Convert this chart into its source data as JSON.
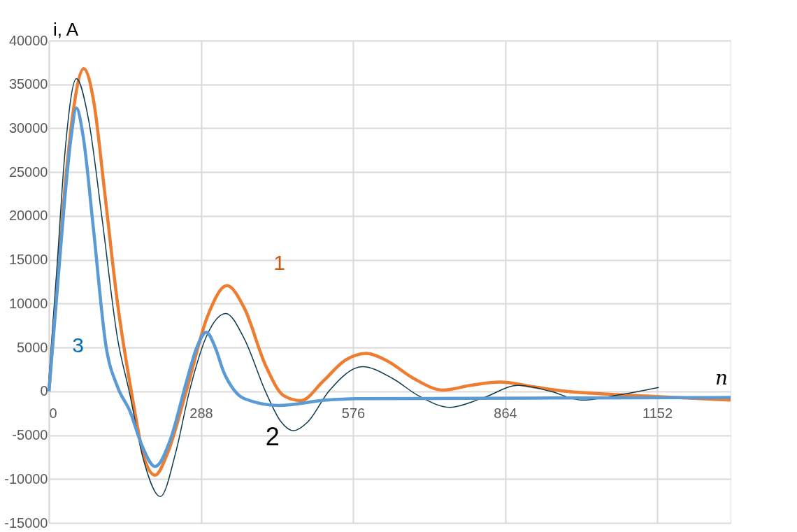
{
  "chart_data": {
    "type": "line",
    "xlabel": "n",
    "ylabel": "i, A",
    "xlim": [
      0,
      1291
    ],
    "xticks": [
      0,
      288,
      576,
      864,
      1152
    ],
    "ylim": [
      -15000,
      40000
    ],
    "yticks": [
      -15000,
      -10000,
      -5000,
      0,
      5000,
      10000,
      15000,
      20000,
      25000,
      30000,
      35000,
      40000
    ],
    "grid": true,
    "series": [
      {
        "name": "1",
        "color": "#ed7d31",
        "x": [
          0,
          15,
          30,
          45,
          66,
          85,
          105,
          130,
          156,
          180,
          201,
          225,
          260,
          300,
          337,
          370,
          410,
          445,
          477,
          520,
          560,
          601,
          640,
          690,
          746,
          800,
          854,
          920,
          980,
          1050,
          1150,
          1291
        ],
        "values": [
          0,
          12000,
          23000,
          31500,
          36800,
          33000,
          23000,
          10000,
          0,
          -7500,
          -9560,
          -7000,
          0,
          8500,
          12060,
          9500,
          3000,
          -500,
          -1060,
          1200,
          3500,
          4320,
          3500,
          1500,
          150,
          700,
          1060,
          500,
          0,
          -300,
          -600,
          -990
        ]
      },
      {
        "name": "2",
        "color": "#0d3b4f",
        "x": [
          0,
          15,
          30,
          52,
          75,
          100,
          130,
          152,
          180,
          211,
          240,
          266,
          300,
          335,
          370,
          410,
          440,
          463,
          490,
          530,
          594,
          650,
          700,
          759,
          820,
          889,
          950,
          1009,
          1080,
          1155
        ],
        "values": [
          1400,
          14000,
          27000,
          35650,
          31000,
          20000,
          6000,
          0,
          -8000,
          -12000,
          -7000,
          0,
          6500,
          8880,
          6000,
          0,
          -3500,
          -4480,
          -3500,
          0,
          2810,
          1500,
          -500,
          -1820,
          -800,
          680,
          0,
          -1000,
          -400,
          450
        ]
      },
      {
        "name": "3",
        "color": "#5b9bd5",
        "x": [
          0,
          15,
          30,
          42,
          52,
          65,
          84,
          108,
          130,
          154,
          175,
          201,
          230,
          260,
          280,
          298,
          315,
          331,
          350,
          370,
          435,
          525,
          590,
          800,
          1000,
          1291
        ],
        "values": [
          0,
          11000,
          22000,
          29000,
          32300,
          29000,
          18700,
          5200,
          500,
          -2350,
          -6000,
          -8570,
          -5500,
          1000,
          5000,
          6750,
          5000,
          2200,
          200,
          -830,
          -1600,
          -1000,
          -830,
          -800,
          -750,
          -700
        ]
      }
    ]
  }
}
